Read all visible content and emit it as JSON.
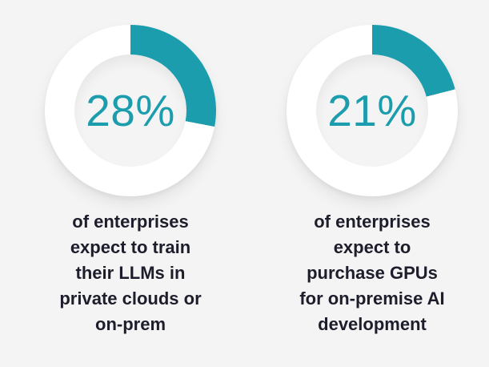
{
  "colors": {
    "background": "#f4f4f4",
    "accent_teal": "#1b9dad",
    "ring_white": "#ffffff",
    "caption_text": "#1d1d2b"
  },
  "chart_data": [
    {
      "type": "pie",
      "subtype": "donut",
      "value": 28,
      "remainder": 72,
      "label": "28%",
      "caption_lines": [
        "of enterprises",
        "expect to train",
        "their LLMs in",
        "private clouds or",
        "on-prem"
      ],
      "color": "#1b9dad",
      "ring_color": "#ffffff",
      "start_angle_deg": 0,
      "direction": "clockwise",
      "legend": "none"
    },
    {
      "type": "pie",
      "subtype": "donut",
      "value": 21,
      "remainder": 79,
      "label": "21%",
      "caption_lines": [
        "of enterprises",
        "expect to",
        "purchase GPUs",
        "for on-premise AI",
        "development"
      ],
      "color": "#1b9dad",
      "ring_color": "#ffffff",
      "start_angle_deg": 0,
      "direction": "clockwise",
      "legend": "none"
    }
  ]
}
